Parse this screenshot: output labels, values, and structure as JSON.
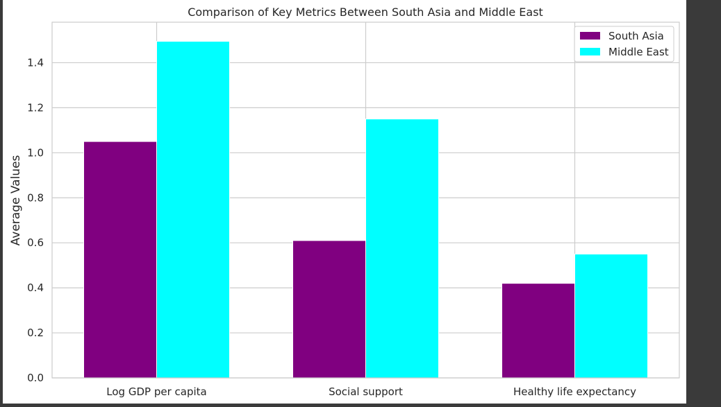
{
  "chart_data": {
    "type": "bar",
    "title": "Comparison of Key Metrics Between South Asia and Middle East",
    "xlabel": "",
    "ylabel": "Average Values",
    "categories": [
      "Log GDP per capita",
      "Social support",
      "Healthy life expectancy"
    ],
    "series": [
      {
        "name": "South Asia",
        "values": [
          1.05,
          0.61,
          0.42
        ],
        "color": "#800080"
      },
      {
        "name": "Middle East",
        "values": [
          1.495,
          1.15,
          0.55
        ],
        "color": "#00ffff"
      }
    ],
    "ylim": [
      0,
      1.58
    ],
    "yticks": [
      "0.0",
      "0.2",
      "0.4",
      "0.6",
      "0.8",
      "1.0",
      "1.2",
      "1.4"
    ],
    "grid": true,
    "legend_position": "top-right"
  }
}
